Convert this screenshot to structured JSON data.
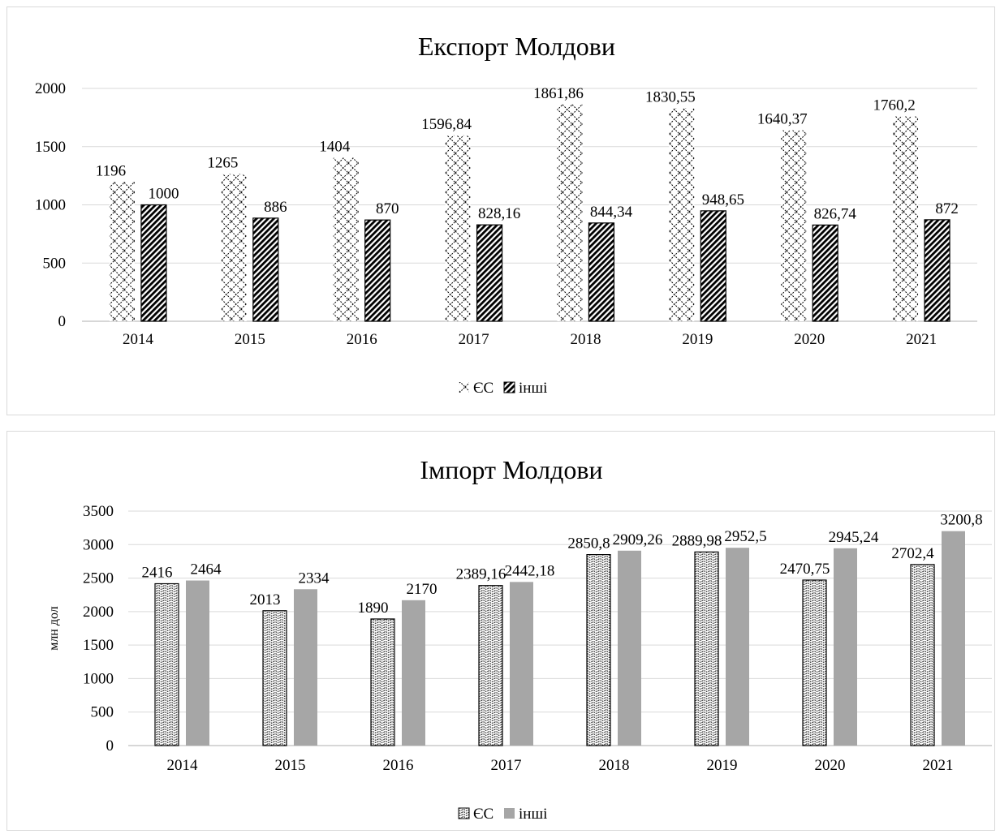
{
  "chart_data": [
    {
      "type": "bar",
      "title": "Експорт Молдови",
      "xlabel": "",
      "ylabel": "",
      "categories": [
        "2014",
        "2015",
        "2016",
        "2017",
        "2018",
        "2019",
        "2020",
        "2021"
      ],
      "ylim": [
        0,
        2000
      ],
      "yticks": [
        0,
        500,
        1000,
        1500,
        2000
      ],
      "grid": true,
      "legend": "bottom",
      "series": [
        {
          "name": "ЄС",
          "values": [
            1196,
            1265,
            1404,
            1596.84,
            1861.86,
            1830.55,
            1640.37,
            1760.2
          ],
          "labels": [
            "1196",
            "1265",
            "1404",
            "1596,84",
            "1861,86",
            "1830,55",
            "1640,37",
            "1760,2"
          ],
          "pattern": "zigzag"
        },
        {
          "name": "інші",
          "values": [
            1000,
            886,
            870,
            828.16,
            844.34,
            948.65,
            826.74,
            872
          ],
          "labels": [
            "1000",
            "886",
            "870",
            "828,16",
            "844,34",
            "948,65",
            "826,74",
            "872"
          ],
          "pattern": "diagonal"
        }
      ]
    },
    {
      "type": "bar",
      "title": "Імпорт Молдови",
      "xlabel": "",
      "ylabel": "млн дол",
      "categories": [
        "2014",
        "2015",
        "2016",
        "2017",
        "2018",
        "2019",
        "2020",
        "2021"
      ],
      "ylim": [
        0,
        3500
      ],
      "yticks": [
        0,
        500,
        1000,
        1500,
        2000,
        2500,
        3000,
        3500
      ],
      "grid": true,
      "legend": "bottom",
      "series": [
        {
          "name": "ЄС",
          "values": [
            2416,
            2013,
            1890,
            2389.16,
            2850.8,
            2889.98,
            2470.75,
            2702.4
          ],
          "labels": [
            "2416",
            "2013",
            "1890",
            "2389,16",
            "2850,8",
            "2889,98",
            "2470,75",
            "2702,4"
          ],
          "pattern": "checker"
        },
        {
          "name": "інші",
          "values": [
            2464,
            2334,
            2170,
            2442.18,
            2909.26,
            2952.5,
            2945.24,
            3200.8
          ],
          "labels": [
            "2464",
            "2334",
            "2170",
            "2442,18",
            "2909,26",
            "2952,5",
            "2945,24",
            "3200,8"
          ],
          "color": "#a6a6a6"
        }
      ]
    }
  ]
}
